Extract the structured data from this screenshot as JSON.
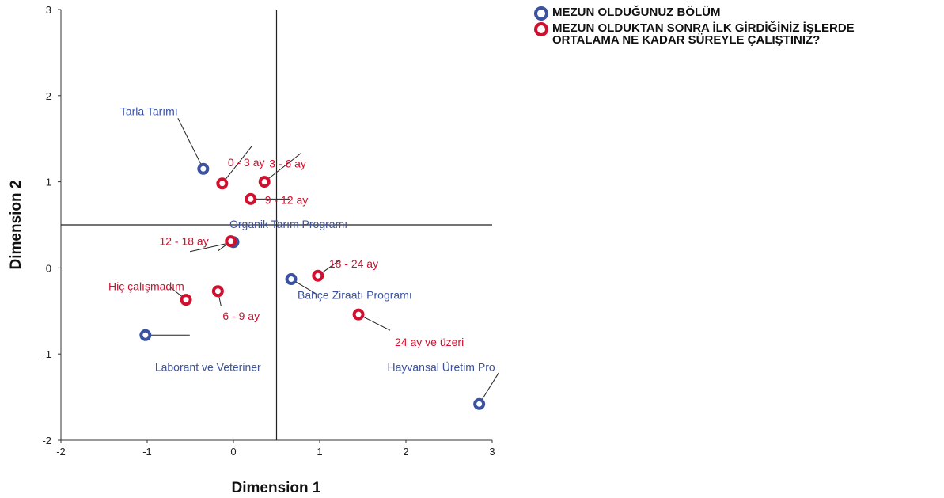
{
  "chart_data": {
    "type": "scatter",
    "title": "",
    "xlabel": "Dimension 1",
    "ylabel": "Dimension 2",
    "xlim": [
      -2,
      3
    ],
    "ylim": [
      -2,
      3
    ],
    "xticks": [
      -2,
      -1,
      0,
      1,
      2,
      3
    ],
    "yticks": [
      -2,
      -1,
      0,
      1,
      2,
      3
    ],
    "grid": false,
    "reference_lines": {
      "x": 0.5,
      "y": 0.5
    },
    "legend_position": "top-right",
    "series": [
      {
        "name": "MEZUN OLDUĞUNUZ BÖLÜM",
        "color": "#3a52a0",
        "points": [
          {
            "label": "Tarla Tarımı",
            "x": -0.35,
            "y": 1.15
          },
          {
            "label": "Organik Tarım Programı",
            "x": 0.0,
            "y": 0.3
          },
          {
            "label": "Bahçe Ziraatı Programı",
            "x": 0.67,
            "y": -0.13
          },
          {
            "label": "Laborant ve Veteriner",
            "x": -1.02,
            "y": -0.78
          },
          {
            "label": "Hayvansal Üretim Pro",
            "x": 2.85,
            "y": -1.58
          }
        ]
      },
      {
        "name": "MEZUN OLDUKTAN SONRA İLK GİRDİĞİNİZ İŞLERDE\nORTALAMA NE KADAR SÜREYLE ÇALIŞTINIZ?",
        "color": "#d0102e",
        "points": [
          {
            "label": "0 - 3 ay",
            "x": -0.13,
            "y": 0.98
          },
          {
            "label": "3 - 6 ay",
            "x": 0.36,
            "y": 1.0
          },
          {
            "label": "9 - 12 ay",
            "x": 0.2,
            "y": 0.8
          },
          {
            "label": "12 - 18 ay",
            "x": -0.03,
            "y": 0.31
          },
          {
            "label": "18 - 24 ay",
            "x": 0.98,
            "y": -0.09
          },
          {
            "label": "Hiç çalışmadım",
            "x": -0.55,
            "y": -0.37
          },
          {
            "label": "6 - 9 ay",
            "x": -0.18,
            "y": -0.27
          },
          {
            "label": "24 ay ve üzeri",
            "x": 1.45,
            "y": -0.54
          }
        ]
      }
    ]
  }
}
